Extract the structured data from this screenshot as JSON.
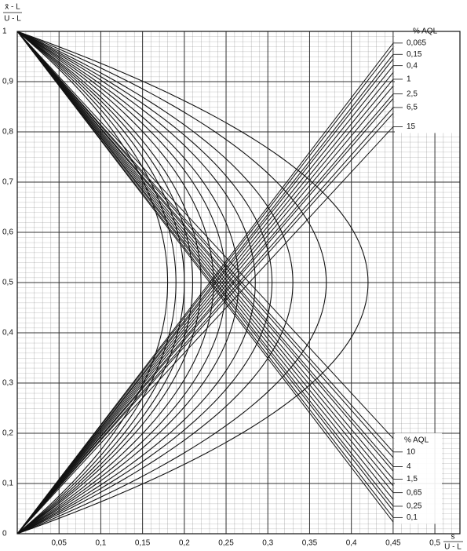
{
  "chart_data": {
    "type": "acceptance-chart",
    "y_label": {
      "numerator": "x̄ - L",
      "denominator": "U - L"
    },
    "x_label": {
      "numerator": "s",
      "denominator": "U - L"
    },
    "legend_title": "% AQL",
    "line_color": "#111111",
    "grid": true,
    "xlim": [
      0,
      0.53
    ],
    "ylim": [
      0,
      1
    ],
    "xticks": [
      {
        "value": 0.05,
        "label": "0,05"
      },
      {
        "value": 0.1,
        "label": "0,1"
      },
      {
        "value": 0.15,
        "label": "0,15"
      },
      {
        "value": 0.2,
        "label": "0,2"
      },
      {
        "value": 0.25,
        "label": "0,25"
      },
      {
        "value": 0.3,
        "label": "0,3"
      },
      {
        "value": 0.35,
        "label": "0,35"
      },
      {
        "value": 0.4,
        "label": "0,4"
      },
      {
        "value": 0.45,
        "label": "0,45"
      },
      {
        "value": 0.5,
        "label": "0,5"
      }
    ],
    "yticks": [
      0,
      {
        "value": 0.1,
        "label": "0,1"
      },
      {
        "value": 0.2,
        "label": "0,2"
      },
      {
        "value": 0.3,
        "label": "0,3"
      },
      {
        "value": 0.4,
        "label": "0,4"
      },
      {
        "value": 0.5,
        "label": "0,5"
      },
      {
        "value": 0.6,
        "label": "0,6"
      },
      {
        "value": 0.7,
        "label": "0,7"
      },
      {
        "value": 0.8,
        "label": "0,8"
      },
      {
        "value": 0.9,
        "label": "0,9"
      },
      1
    ],
    "series": [
      {
        "name": "0,065",
        "k": 2.17,
        "smax": 0.18,
        "label_side": "top"
      },
      {
        "name": "0,1",
        "k": 2.15,
        "smax": 0.19,
        "label_side": "bottom"
      },
      {
        "name": "0,15",
        "k": 2.12,
        "smax": 0.2,
        "label_side": "top"
      },
      {
        "name": "0,25",
        "k": 2.1,
        "smax": 0.21,
        "label_side": "bottom"
      },
      {
        "name": "0,4",
        "k": 2.07,
        "smax": 0.22,
        "label_side": "top"
      },
      {
        "name": "0,65",
        "k": 2.04,
        "smax": 0.235,
        "label_side": "bottom"
      },
      {
        "name": "1",
        "k": 2.01,
        "smax": 0.25,
        "label_side": "top"
      },
      {
        "name": "1,5",
        "k": 1.98,
        "smax": 0.265,
        "label_side": "bottom"
      },
      {
        "name": "2,5",
        "k": 1.945,
        "smax": 0.285,
        "label_side": "top"
      },
      {
        "name": "4",
        "k": 1.925,
        "smax": 0.305,
        "label_side": "bottom"
      },
      {
        "name": "6,5",
        "k": 1.885,
        "smax": 0.33,
        "label_side": "top"
      },
      {
        "name": "10",
        "k": 1.86,
        "smax": 0.37,
        "label_side": "bottom"
      },
      {
        "name": "15",
        "k": 1.8,
        "smax": 0.42,
        "label_side": "top"
      }
    ]
  }
}
